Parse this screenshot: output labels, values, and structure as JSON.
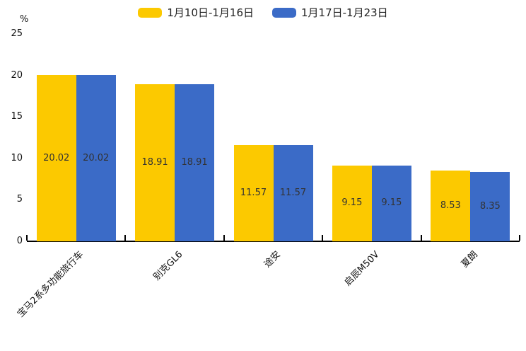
{
  "chart_data": {
    "type": "bar",
    "title": "",
    "ylabel": "%",
    "xlabel": "",
    "categories": [
      "宝马2系多功能旅行车",
      "别克GL6",
      "途安",
      "启辰M50V",
      "夏朗"
    ],
    "series": [
      {
        "name": "1月10日-1月16日",
        "color": "#FCC900",
        "values": [
          20.02,
          18.91,
          11.57,
          9.15,
          8.53
        ]
      },
      {
        "name": "1月17日-1月23日",
        "color": "#3B6BC7",
        "values": [
          20.02,
          18.91,
          11.57,
          9.15,
          8.35
        ]
      }
    ],
    "value_labels": [
      [
        "20.02",
        "18.91",
        "11.57",
        "9.15",
        "8.53"
      ],
      [
        "20.02",
        "18.91",
        "11.57",
        "9.15",
        "8.35"
      ]
    ],
    "ylim": [
      0,
      25
    ],
    "yticks": [
      0,
      5,
      10,
      15,
      20,
      25
    ],
    "legend_position": "top",
    "grid": false,
    "value_label_color": "#333333",
    "axis_color": "#000000",
    "background_color": "#ffffff"
  }
}
